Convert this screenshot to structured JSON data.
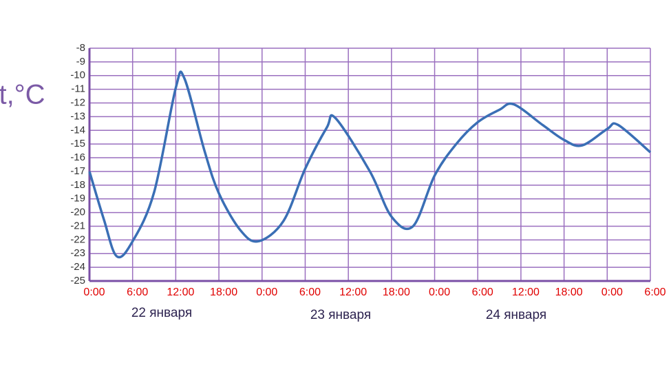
{
  "chart_data": {
    "type": "line",
    "y_label": "t,°C",
    "annotations": [
      "22 января",
      "23 января",
      "24 января"
    ],
    "x": [
      0,
      2,
      3.8,
      6,
      9,
      12,
      13.2,
      16,
      18,
      21,
      23.5,
      27,
      30,
      33,
      34.2,
      39,
      42,
      45,
      48,
      51,
      54,
      57,
      59,
      63,
      66,
      68.5,
      72,
      73.5,
      78
    ],
    "series": [
      {
        "name": "t",
        "color": "#3a6fb5",
        "values": [
          -17,
          -20.5,
          -23.2,
          -22.1,
          -18.5,
          -10.9,
          -10.2,
          -15.5,
          -18.6,
          -21.3,
          -22.1,
          -20.6,
          -16.8,
          -13.8,
          -13.1,
          -17,
          -20.3,
          -21,
          -17.3,
          -15,
          -13.4,
          -12.5,
          -12.1,
          -13.6,
          -14.7,
          -15.1,
          -13.9,
          -13.6,
          -15.6
        ]
      }
    ],
    "xlim": [
      0,
      78
    ],
    "xticks": [
      {
        "value": 0,
        "label": "0:00"
      },
      {
        "value": 6,
        "label": "6:00"
      },
      {
        "value": 12,
        "label": "12:00"
      },
      {
        "value": 18,
        "label": "18:00"
      },
      {
        "value": 24,
        "label": "0:00"
      },
      {
        "value": 30,
        "label": "6:00"
      },
      {
        "value": 36,
        "label": "12:00"
      },
      {
        "value": 42,
        "label": "18:00"
      },
      {
        "value": 48,
        "label": "0:00"
      },
      {
        "value": 54,
        "label": "6:00"
      },
      {
        "value": 60,
        "label": "12:00"
      },
      {
        "value": 66,
        "label": "18:00"
      },
      {
        "value": 72,
        "label": "0:00"
      },
      {
        "value": 78,
        "label": "6:00"
      }
    ],
    "ylim": [
      -25,
      -8
    ],
    "yticks": [
      -8,
      -9,
      -10,
      -11,
      -12,
      -13,
      -14,
      -15,
      -16,
      -17,
      -18,
      -19,
      -20,
      -21,
      -22,
      -23,
      -24,
      -25
    ],
    "grid": true
  }
}
